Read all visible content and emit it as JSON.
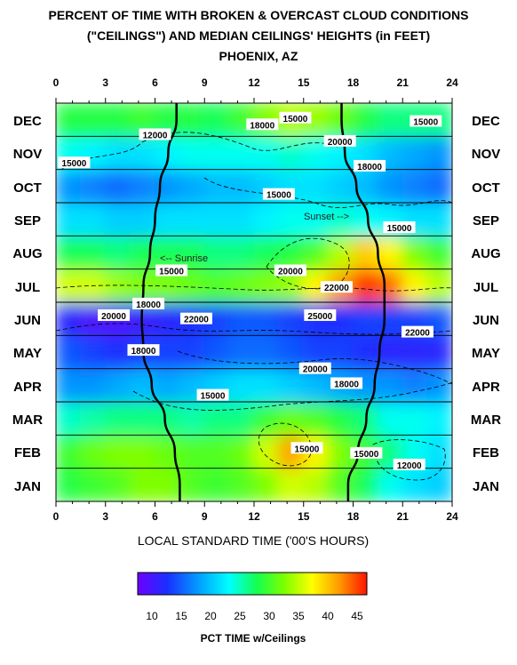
{
  "title": {
    "line1": "PERCENT OF TIME WITH BROKEN & OVERCAST CLOUD CONDITIONS",
    "line2": "(\"CEILINGS\") AND MEDIAN CEILINGS' HEIGHTS (in FEET)",
    "line3": "PHOENIX, AZ"
  },
  "months_top_to_bottom": [
    "DEC",
    "NOV",
    "OCT",
    "SEP",
    "AUG",
    "JUL",
    "JUN",
    "MAY",
    "APR",
    "MAR",
    "FEB",
    "JAN"
  ],
  "hour_ticks": [
    "0",
    "3",
    "6",
    "9",
    "12",
    "15",
    "18",
    "21",
    "24"
  ],
  "xlabel": "LOCAL STANDARD TIME ('00'S HOURS)",
  "colorbar": {
    "ticks": [
      "10",
      "15",
      "20",
      "25",
      "30",
      "35",
      "40",
      "45"
    ],
    "label": "PCT TIME w/Ceilings"
  },
  "annotations": {
    "sunrise": "<-- Sunrise",
    "sunset": "Sunset -->"
  },
  "chart_data": {
    "type": "heatmap",
    "title": "PERCENT OF TIME WITH BROKEN & OVERCAST CLOUD CONDITIONS (\"CEILINGS\") AND MEDIAN CEILINGS' HEIGHTS (in FEET) PHOENIX, AZ",
    "xlabel": "LOCAL STANDARD TIME ('00'S HOURS)",
    "x_range": [
      0,
      24
    ],
    "y_categories": [
      "JAN",
      "FEB",
      "MAR",
      "APR",
      "MAY",
      "JUN",
      "JUL",
      "AUG",
      "SEP",
      "OCT",
      "NOV",
      "DEC"
    ],
    "color_range": [
      8,
      47
    ],
    "colorbar_label": "PCT TIME w/Ceilings",
    "grid_hours": [
      0,
      3,
      6,
      9,
      12,
      15,
      18,
      21,
      24
    ],
    "pct_time_values": [
      [
        29,
        30,
        31,
        33,
        33,
        31,
        30,
        31,
        33,
        36,
        35,
        31,
        28,
        24,
        22,
        21
      ],
      [
        30,
        32,
        33,
        33,
        32,
        31,
        31,
        32,
        36,
        42,
        38,
        33,
        30,
        27,
        24,
        22
      ],
      [
        25,
        26,
        27,
        27,
        27,
        26,
        27,
        27,
        30,
        32,
        31,
        29,
        27,
        24,
        24,
        23
      ],
      [
        18,
        18,
        19,
        20,
        19,
        20,
        21,
        22,
        22,
        21,
        20,
        19,
        18,
        18,
        17,
        18
      ],
      [
        15,
        14,
        13,
        14,
        14,
        14,
        15,
        16,
        16,
        15,
        14,
        14,
        13,
        12,
        12,
        12
      ],
      [
        12,
        10,
        10,
        11,
        12,
        13,
        14,
        15,
        15,
        14,
        13,
        13,
        14,
        14,
        14,
        15
      ],
      [
        36,
        36,
        34,
        33,
        33,
        32,
        31,
        32,
        33,
        34,
        38,
        42,
        46,
        44,
        38,
        35
      ],
      [
        28,
        28,
        27,
        28,
        28,
        28,
        27,
        27,
        28,
        29,
        31,
        35,
        40,
        38,
        33,
        30
      ],
      [
        22,
        22,
        21,
        21,
        22,
        22,
        22,
        22,
        23,
        24,
        24,
        25,
        24,
        23,
        22,
        22
      ],
      [
        18,
        17,
        16,
        17,
        18,
        19,
        20,
        20,
        21,
        22,
        22,
        21,
        20,
        18,
        17,
        16
      ],
      [
        24,
        23,
        22,
        22,
        23,
        24,
        24,
        24,
        24,
        25,
        24,
        23,
        22,
        20,
        19,
        18
      ],
      [
        29,
        29,
        29,
        30,
        29,
        29,
        28,
        30,
        33,
        35,
        34,
        32,
        29,
        27,
        27,
        27
      ]
    ],
    "sunrise_hour": [
      7.5,
      7.2,
      6.6,
      5.8,
      5.3,
      5.2,
      5.3,
      5.7,
      6.0,
      6.3,
      6.8,
      7.3
    ],
    "sunset_hour": [
      17.7,
      18.3,
      18.8,
      19.3,
      19.6,
      19.9,
      19.9,
      19.5,
      18.9,
      18.2,
      17.5,
      17.3
    ],
    "ceiling_height_labels": [
      {
        "text": "15000",
        "hour": 14.5,
        "month_pos": 11.55
      },
      {
        "text": "15000",
        "hour": 22.4,
        "month_pos": 11.45
      },
      {
        "text": "18000",
        "hour": 12.5,
        "month_pos": 11.35
      },
      {
        "text": "12000",
        "hour": 6.0,
        "month_pos": 11.05
      },
      {
        "text": "20000",
        "hour": 17.2,
        "month_pos": 10.85
      },
      {
        "text": "15000",
        "hour": 1.1,
        "month_pos": 10.2
      },
      {
        "text": "18000",
        "hour": 19.0,
        "month_pos": 10.1
      },
      {
        "text": "15000",
        "hour": 13.5,
        "month_pos": 9.25
      },
      {
        "text": "15000",
        "hour": 20.8,
        "month_pos": 8.25
      },
      {
        "text": "15000",
        "hour": 7.0,
        "month_pos": 6.95
      },
      {
        "text": "20000",
        "hour": 14.2,
        "month_pos": 6.95
      },
      {
        "text": "22000",
        "hour": 17.0,
        "month_pos": 6.45
      },
      {
        "text": "18000",
        "hour": 5.6,
        "month_pos": 5.95
      },
      {
        "text": "20000",
        "hour": 3.5,
        "month_pos": 5.6
      },
      {
        "text": "22000",
        "hour": 8.5,
        "month_pos": 5.5
      },
      {
        "text": "25000",
        "hour": 16.0,
        "month_pos": 5.6
      },
      {
        "text": "22000",
        "hour": 21.9,
        "month_pos": 5.1
      },
      {
        "text": "18000",
        "hour": 5.3,
        "month_pos": 4.55
      },
      {
        "text": "20000",
        "hour": 15.7,
        "month_pos": 4.0
      },
      {
        "text": "18000",
        "hour": 17.6,
        "month_pos": 3.55
      },
      {
        "text": "15000",
        "hour": 9.5,
        "month_pos": 3.2
      },
      {
        "text": "15000",
        "hour": 15.2,
        "month_pos": 1.6
      },
      {
        "text": "15000",
        "hour": 18.8,
        "month_pos": 1.45
      },
      {
        "text": "12000",
        "hour": 21.4,
        "month_pos": 1.1
      }
    ]
  }
}
